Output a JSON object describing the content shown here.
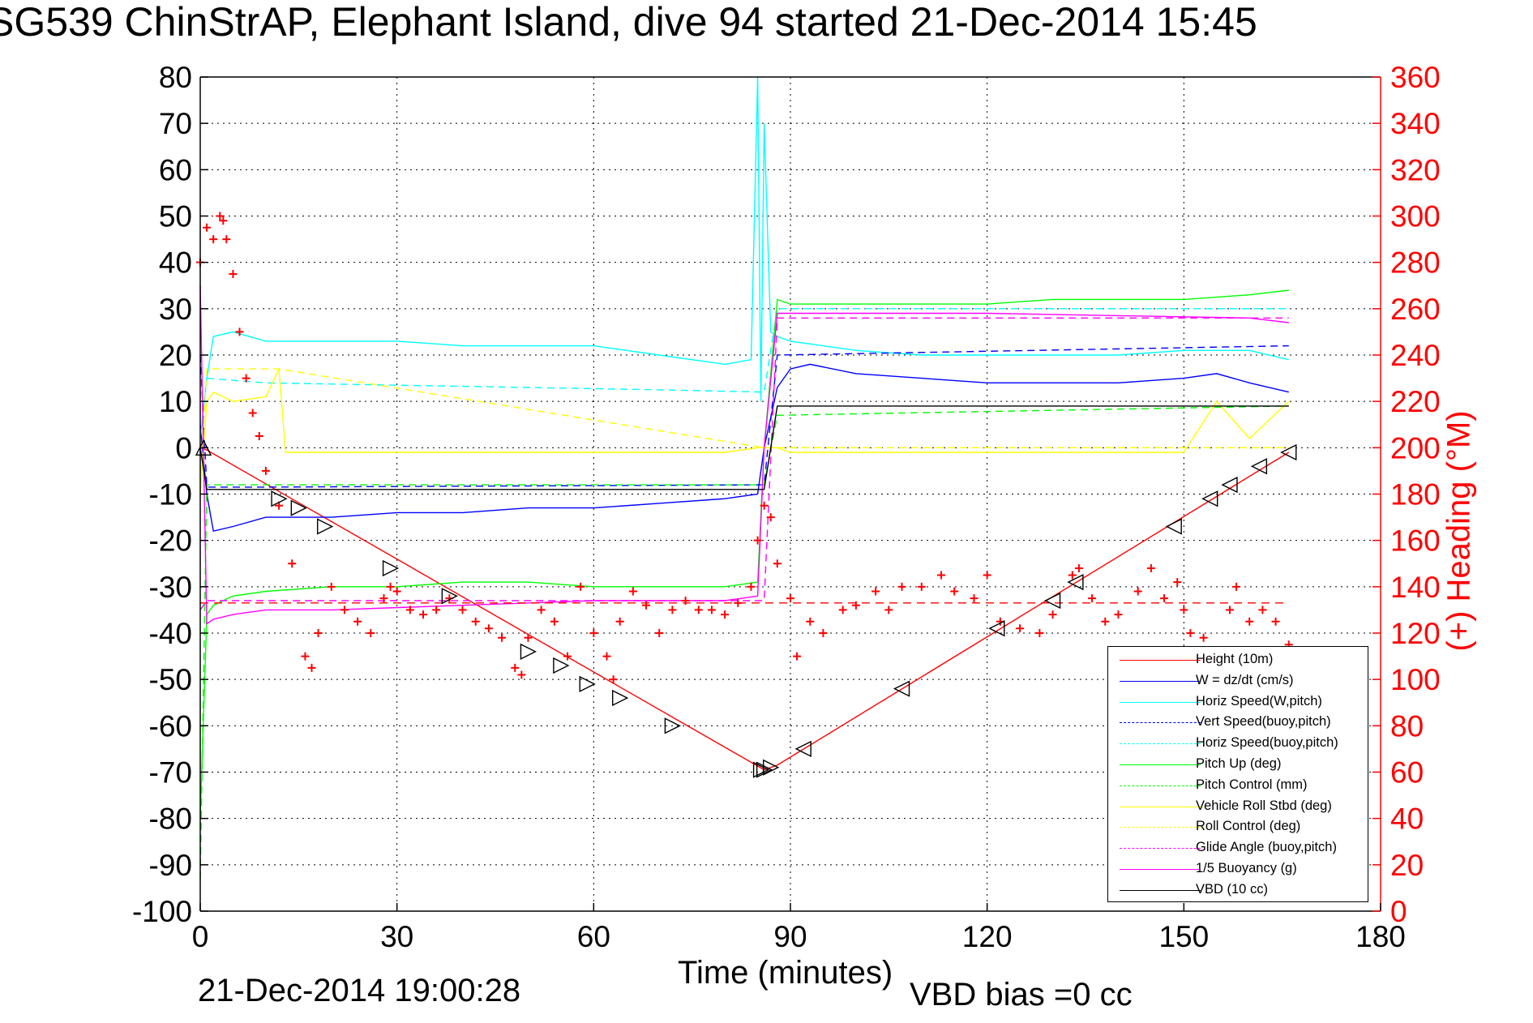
{
  "chart_data": {
    "type": "line",
    "title": "SG539 ChinStrAP, Elephant Island, dive 94 started 21-Dec-2014 15:45",
    "xlabel": "Time (minutes)",
    "ylabel": "",
    "y2label": "(+) Heading (°M)",
    "footer_timestamp": "21-Dec-2014 19:00:28",
    "footer_note": "VBD bias =0 cc",
    "xlim": [
      0,
      180
    ],
    "ylim": [
      -100,
      80
    ],
    "y2lim": [
      0,
      360
    ],
    "grid": true,
    "legend_position": "bottom-right",
    "x_ticks": [
      "0",
      "30",
      "60",
      "90",
      "120",
      "150",
      "180"
    ],
    "y_ticks": [
      "80",
      "70",
      "60",
      "50",
      "40",
      "30",
      "20",
      "10",
      "0",
      "-10",
      "-20",
      "-30",
      "-40",
      "-50",
      "-60",
      "-70",
      "-80",
      "-90",
      "-100"
    ],
    "y2_ticks": [
      "360",
      "340",
      "320",
      "300",
      "280",
      "260",
      "240",
      "220",
      "200",
      "180",
      "160",
      "140",
      "120",
      "100",
      "80",
      "60",
      "40",
      "20",
      "0"
    ],
    "series": [
      {
        "name": "Height (10m)",
        "color": "#ff0000",
        "style": "solid",
        "x": [
          0,
          1,
          86,
          88,
          166
        ],
        "y": [
          0,
          -0.5,
          -69.5,
          -68.5,
          -1
        ]
      },
      {
        "name": "W = dz/dt (cm/s)",
        "color": "#0000ff",
        "style": "solid",
        "x": [
          0,
          1,
          2,
          5,
          10,
          20,
          30,
          40,
          50,
          60,
          70,
          80,
          85,
          86,
          88,
          90,
          93,
          100,
          110,
          120,
          130,
          140,
          150,
          155,
          160,
          166
        ],
        "y": [
          5,
          -10,
          -18,
          -17,
          -15,
          -15,
          -14,
          -14,
          -13,
          -13,
          -12,
          -11,
          -10,
          0,
          13,
          17,
          18,
          16,
          15,
          14,
          14,
          14,
          15,
          16,
          14,
          12
        ]
      },
      {
        "name": "Horiz Speed(W,pitch)",
        "color": "#00ffff",
        "style": "solid",
        "x": [
          0,
          1,
          2,
          5,
          10,
          20,
          30,
          40,
          50,
          60,
          70,
          80,
          84,
          85,
          85.5,
          86,
          87,
          88,
          90,
          100,
          110,
          120,
          130,
          140,
          150,
          160,
          166
        ],
        "y": [
          2,
          15,
          24,
          25,
          23,
          23,
          23,
          22,
          22,
          22,
          20,
          18,
          19,
          80,
          10,
          70,
          25,
          24,
          23,
          21,
          20,
          20,
          20,
          20,
          21,
          21,
          19
        ]
      },
      {
        "name": "Vert Speed(buoy,pitch)",
        "color": "#0000ff",
        "style": "dashed",
        "x": [
          0,
          1,
          10,
          86,
          88,
          166
        ],
        "y": [
          20,
          -8.5,
          -8.5,
          -8,
          20,
          22
        ]
      },
      {
        "name": "Horiz Speed(buoy,pitch)",
        "color": "#00ffff",
        "style": "dashed",
        "x": [
          1,
          10,
          30,
          50,
          70,
          86,
          88,
          120,
          166
        ],
        "y": [
          15,
          14,
          13.5,
          13,
          12.5,
          12,
          30,
          30,
          30
        ]
      },
      {
        "name": "Pitch Up (deg)",
        "color": "#00ff00",
        "style": "solid",
        "x": [
          0,
          1,
          2,
          5,
          10,
          20,
          30,
          40,
          50,
          60,
          70,
          80,
          85,
          86,
          88,
          90,
          100,
          110,
          120,
          130,
          140,
          150,
          160,
          166
        ],
        "y": [
          -80,
          -36,
          -34,
          -32,
          -31,
          -30,
          -30,
          -29,
          -29,
          -30,
          -30,
          -30,
          -29,
          0,
          32,
          31,
          31,
          31,
          31,
          32,
          32,
          32,
          33,
          34
        ]
      },
      {
        "name": "Pitch Control (mm)",
        "color": "#00ff00",
        "style": "dashed",
        "x": [
          0,
          1,
          86,
          88,
          166
        ],
        "y": [
          -93,
          -8,
          -8,
          7,
          9
        ]
      },
      {
        "name": "Vehicle Roll Stbd (deg)",
        "color": "#ffff00",
        "style": "solid",
        "x": [
          0,
          1,
          2,
          5,
          10,
          12,
          13,
          20,
          30,
          40,
          50,
          60,
          70,
          80,
          85,
          86,
          88,
          90,
          100,
          110,
          120,
          130,
          140,
          150,
          155,
          160,
          166
        ],
        "y": [
          -10,
          10,
          12,
          10,
          11,
          17,
          -1,
          -1,
          -1,
          -1,
          -1,
          -1,
          -1,
          -1,
          0,
          0,
          0,
          -1,
          -1,
          -1,
          -1,
          -1,
          -1,
          -1,
          10,
          2,
          10
        ]
      },
      {
        "name": "Roll Control (deg)",
        "color": "#ffff00",
        "style": "dashed",
        "x": [
          0,
          1,
          12,
          86,
          88,
          166
        ],
        "y": [
          -8,
          17,
          17,
          0,
          0,
          0
        ]
      },
      {
        "name": "Glide Angle (buoy,pitch)",
        "color": "#ff00ff",
        "style": "dashed",
        "x": [
          0,
          1,
          86,
          88,
          166
        ],
        "y": [
          -35,
          -33,
          -33,
          28,
          28
        ]
      },
      {
        "name": "1/5 Buoyancy (g)",
        "color": "#ff00ff",
        "style": "solid",
        "x": [
          0,
          1,
          2,
          5,
          10,
          20,
          40,
          60,
          80,
          85,
          86,
          88,
          90,
          100,
          120,
          140,
          160,
          166
        ],
        "y": [
          35,
          -38,
          -37,
          -36,
          -35,
          -35,
          -34,
          -33,
          -33,
          -32,
          0,
          29,
          29,
          29,
          29,
          28.5,
          28,
          27
        ]
      },
      {
        "name": "VBD (10 cc)",
        "color": "#000000",
        "style": "solid",
        "x": [
          0,
          1,
          86,
          88,
          166
        ],
        "y": [
          0,
          -9,
          -9,
          9,
          9
        ]
      }
    ],
    "heading_series": {
      "name": "(+) Heading",
      "color": "#ff0000",
      "marker": "+",
      "reference_heading": 133,
      "x": [
        0,
        1,
        2,
        3,
        3.5,
        4,
        5,
        6,
        7,
        8,
        9,
        10,
        12,
        14,
        16,
        17,
        18,
        20,
        22,
        24,
        26,
        28,
        29,
        30,
        32,
        34,
        36,
        38,
        40,
        42,
        44,
        46,
        48,
        49,
        50,
        52,
        54,
        56,
        58,
        60,
        62,
        63,
        64,
        66,
        68,
        70,
        72,
        74,
        76,
        78,
        80,
        82,
        84,
        85,
        86,
        87,
        88,
        90,
        91,
        93,
        95,
        98,
        100,
        103,
        105,
        107,
        110,
        113,
        115,
        118,
        120,
        122,
        125,
        128,
        130,
        133,
        134,
        136,
        138,
        140,
        143,
        145,
        147,
        149,
        150,
        151,
        153,
        155,
        157,
        158,
        160,
        162,
        164,
        166
      ],
      "y": [
        280,
        295,
        290,
        300,
        298,
        290,
        275,
        250,
        230,
        215,
        205,
        190,
        175,
        150,
        110,
        105,
        120,
        140,
        130,
        125,
        120,
        135,
        140,
        138,
        130,
        128,
        130,
        135,
        130,
        125,
        122,
        118,
        105,
        102,
        118,
        130,
        125,
        110,
        140,
        120,
        110,
        100,
        125,
        138,
        132,
        120,
        130,
        134,
        130,
        130,
        128,
        133,
        140,
        160,
        175,
        170,
        150,
        135,
        110,
        125,
        120,
        130,
        132,
        138,
        130,
        140,
        140,
        145,
        138,
        135,
        145,
        125,
        122,
        120,
        128,
        145,
        148,
        135,
        125,
        128,
        138,
        148,
        135,
        142,
        130,
        120,
        118,
        110,
        130,
        140,
        125,
        130,
        125,
        115
      ]
    },
    "marker_points": {
      "description_marker": "triangle",
      "x": [
        0.5,
        12,
        15,
        19,
        29,
        38,
        50,
        55,
        59,
        64,
        72,
        85.5,
        86,
        87,
        92,
        107,
        121.5,
        130,
        133.5,
        148.5,
        154,
        157,
        161.5,
        166
      ],
      "y": [
        0,
        -11,
        -13,
        -17,
        -26,
        -32,
        -44,
        -47,
        -51,
        -54,
        -60,
        -69.5,
        -69.5,
        -69,
        -65,
        -52,
        -39,
        -33,
        -29,
        -17,
        -11,
        -8,
        -4,
        -1
      ],
      "direction": [
        "up",
        "right",
        "right",
        "right",
        "right",
        "right",
        "right",
        "right",
        "right",
        "right",
        "right",
        "right",
        "right",
        "right",
        "left",
        "left",
        "left",
        "left",
        "left",
        "left",
        "left",
        "left",
        "left",
        "left"
      ]
    }
  }
}
